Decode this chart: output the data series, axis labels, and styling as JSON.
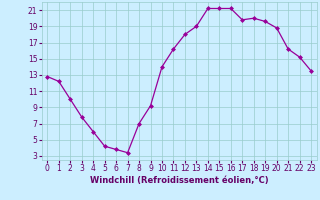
{
  "x": [
    0,
    1,
    2,
    3,
    4,
    5,
    6,
    7,
    8,
    9,
    10,
    11,
    12,
    13,
    14,
    15,
    16,
    17,
    18,
    19,
    20,
    21,
    22,
    23
  ],
  "y": [
    12.8,
    12.2,
    10.0,
    7.8,
    6.0,
    4.2,
    3.8,
    3.4,
    7.0,
    9.2,
    14.0,
    16.2,
    18.0,
    19.0,
    21.2,
    21.2,
    21.2,
    19.8,
    20.0,
    19.6,
    18.8,
    16.2,
    15.2,
    13.5
  ],
  "line_color": "#990099",
  "marker": "D",
  "marker_size": 2.0,
  "linewidth": 0.9,
  "bg_color": "#cceeff",
  "grid_color": "#99cccc",
  "xlabel": "Windchill (Refroidissement éolien,°C)",
  "xlabel_color": "#660066",
  "xlabel_fontsize": 6.0,
  "tick_color": "#660066",
  "tick_fontsize": 5.5,
  "ylim": [
    2.5,
    22.0
  ],
  "xlim": [
    -0.5,
    23.5
  ],
  "yticks": [
    3,
    5,
    7,
    9,
    11,
    13,
    15,
    17,
    19,
    21
  ],
  "xticks": [
    0,
    1,
    2,
    3,
    4,
    5,
    6,
    7,
    8,
    9,
    10,
    11,
    12,
    13,
    14,
    15,
    16,
    17,
    18,
    19,
    20,
    21,
    22,
    23
  ]
}
